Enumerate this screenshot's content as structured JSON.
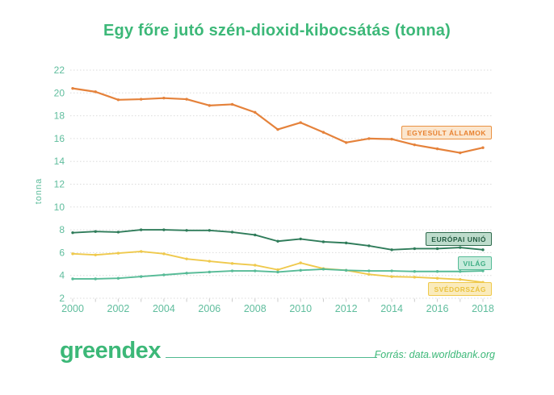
{
  "title": "Egy főre jutó szén-dioxid-kibocsátás (tonna)",
  "footer": {
    "logo": "greendex",
    "source": "Forrás: data.worldbank.org"
  },
  "colors": {
    "brand_green": "#3CB878",
    "axis_label": "#5FBD9D",
    "gridline": "#DBDBDB",
    "tick": "#CCCCCC"
  },
  "chart_data": {
    "type": "line",
    "title": "Egy főre jutó szén-dioxid-kibocsátás (tonna)",
    "xlabel": "",
    "ylabel": "tonna",
    "ylim": [
      2,
      22
    ],
    "yticks": [
      2,
      4,
      6,
      8,
      10,
      12,
      14,
      16,
      18,
      20,
      22
    ],
    "x": [
      2000,
      2001,
      2002,
      2003,
      2004,
      2005,
      2006,
      2007,
      2008,
      2009,
      2010,
      2011,
      2012,
      2013,
      2014,
      2015,
      2016,
      2017,
      2018
    ],
    "xtick_labels": [
      "2000",
      "2002",
      "2004",
      "2006",
      "2008",
      "2010",
      "2012",
      "2014",
      "2016",
      "2018"
    ],
    "grid": "horizontal-dotted",
    "legend_position": "inline-right-boxes",
    "series": [
      {
        "name": "EGYESÜLT ÁLLAMOK",
        "color": "#E5823B",
        "label_bg": "#FBE6CE",
        "label_border": "#EA9243",
        "label_text": "#E8812F",
        "values": [
          20.4,
          20.1,
          19.4,
          19.45,
          19.55,
          19.45,
          18.9,
          19.0,
          18.3,
          16.8,
          17.4,
          16.55,
          15.65,
          16.0,
          15.95,
          15.45,
          15.1,
          14.75,
          15.2
        ]
      },
      {
        "name": "EURÓPAI UNIÓ",
        "color": "#2F7C5A",
        "label_bg": "#BEDCCC",
        "label_border": "#2F6B4E",
        "label_text": "#245C42",
        "values": [
          7.75,
          7.85,
          7.8,
          8.0,
          8.0,
          7.95,
          7.95,
          7.8,
          7.55,
          7.0,
          7.2,
          6.95,
          6.85,
          6.6,
          6.25,
          6.35,
          6.35,
          6.45,
          6.25
        ]
      },
      {
        "name": "VILÁG",
        "color": "#57BB97",
        "label_bg": "#C9ECDD",
        "label_border": "#57BB97",
        "label_text": "#3FAE85",
        "values": [
          3.7,
          3.7,
          3.75,
          3.9,
          4.05,
          4.2,
          4.3,
          4.4,
          4.4,
          4.3,
          4.45,
          4.55,
          4.45,
          4.4,
          4.4,
          4.35,
          4.35,
          4.35,
          4.4
        ]
      },
      {
        "name": "SVÉDORSZÁG",
        "color": "#EFC94C",
        "label_bg": "#FAEBBC",
        "label_border": "#EFC94C",
        "label_text": "#EAC23D",
        "values": [
          5.9,
          5.8,
          5.95,
          6.1,
          5.9,
          5.45,
          5.25,
          5.05,
          4.9,
          4.5,
          5.1,
          4.6,
          4.45,
          4.1,
          3.9,
          3.85,
          3.75,
          3.65,
          3.4
        ]
      }
    ]
  }
}
